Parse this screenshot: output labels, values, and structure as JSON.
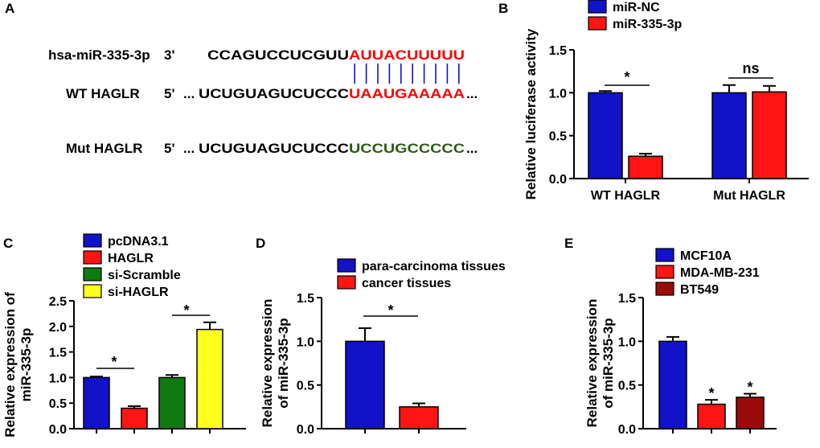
{
  "panelA": {
    "label": "A",
    "rows": [
      {
        "name": "hsa-miR-335-3p",
        "end": "3'",
        "prefix": "",
        "black": "CCAGUCCUCGUU",
        "colored": "AUUACUUUUU",
        "suffix": "",
        "color": "#ff0000"
      },
      {
        "name": "WT HAGLR",
        "end": "5'",
        "prefix": "...",
        "black": "UCUGUAGUCUCCC",
        "colored": "UAAUGAAAAA",
        "suffix": "...",
        "color": "#ff0000"
      },
      {
        "name": "Mut HAGLR",
        "end": "5'",
        "prefix": "...",
        "black": "UCUGUAGUCUCCC",
        "colored": "UCCUGCCCCC",
        "suffix": "...",
        "color": "#2e5a13"
      }
    ],
    "pairing_count": 10
  },
  "colors": {
    "blue": "#1212c8",
    "red": "#ff1414",
    "green": "#107a10",
    "yellow": "#ffff1e",
    "darkred": "#9c0a0a"
  },
  "chart_data": [
    {
      "type": "bar",
      "panel": "B",
      "ylabel": "Relative luciferase activity",
      "ylim": [
        0,
        1.5
      ],
      "yticks": [
        "0.0",
        "0.5",
        "1.0",
        "1.5"
      ],
      "categories": [
        "WT HAGLR",
        "Mut HAGLR"
      ],
      "series": [
        {
          "name": "miR-NC",
          "color": "#1212c8",
          "values": [
            1.0,
            1.0
          ],
          "errors": [
            0.02,
            0.09
          ]
        },
        {
          "name": "miR-335-3p",
          "color": "#ff1414",
          "values": [
            0.26,
            1.01
          ],
          "errors": [
            0.03,
            0.07
          ]
        }
      ],
      "annotations": [
        "*",
        "ns"
      ],
      "legend": "top"
    },
    {
      "type": "bar",
      "panel": "C",
      "ylabel": [
        "Relative expression of",
        "miR-335-3p"
      ],
      "ylim": [
        0,
        2.5
      ],
      "yticks": [
        "0.0",
        "0.5",
        "1.0",
        "1.5",
        "2.0",
        "2.5"
      ],
      "bars": [
        {
          "name": "pcDNA3.1",
          "color": "#1212c8",
          "value": 1.0,
          "error": 0.02
        },
        {
          "name": "HAGLR",
          "color": "#ff1414",
          "value": 0.4,
          "error": 0.04
        },
        {
          "name": "si-Scramble",
          "color": "#107a10",
          "value": 1.0,
          "error": 0.05
        },
        {
          "name": "si-HAGLR",
          "color": "#ffff1e",
          "value": 1.94,
          "error": 0.14
        }
      ],
      "annotations": [
        "*",
        "*"
      ],
      "legend": "top-left"
    },
    {
      "type": "bar",
      "panel": "D",
      "ylabel": [
        "Relative expression",
        "of miR-335-3p"
      ],
      "ylim": [
        0,
        1.5
      ],
      "yticks": [
        "0.0",
        "0.5",
        "1.0",
        "1.5"
      ],
      "bars": [
        {
          "name": "para-carcinoma tissues",
          "color": "#1212c8",
          "value": 1.0,
          "error": 0.15
        },
        {
          "name": "cancer tissues",
          "color": "#ff1414",
          "value": 0.25,
          "error": 0.04
        }
      ],
      "annotations": [
        "*"
      ],
      "legend": "top"
    },
    {
      "type": "bar",
      "panel": "E",
      "ylabel": [
        "Relative expression",
        "of miR-335-3p"
      ],
      "ylim": [
        0,
        1.5
      ],
      "yticks": [
        "0.0",
        "0.5",
        "1.0",
        "1.5"
      ],
      "bars": [
        {
          "name": "MCF10A",
          "color": "#1212c8",
          "value": 1.0,
          "error": 0.05
        },
        {
          "name": "MDA-MB-231",
          "color": "#ff1414",
          "value": 0.28,
          "error": 0.05
        },
        {
          "name": "BT549",
          "color": "#9c0a0a",
          "value": 0.36,
          "error": 0.04
        }
      ],
      "annotations": [
        "*",
        "*"
      ],
      "legend": "top"
    }
  ]
}
